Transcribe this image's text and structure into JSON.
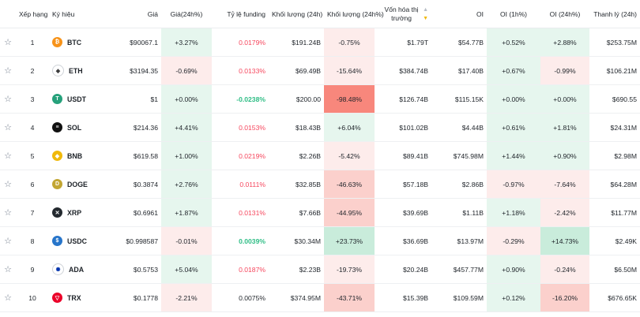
{
  "columns": {
    "rank": "Xếp hạng",
    "symbol": "Ký hiệu",
    "price": "Giá",
    "price_change": "Giá(24h%)",
    "funding": "Tỷ lệ funding",
    "volume": "Khối lượng (24h)",
    "volume_change": "Khối lượng (24h%)",
    "market_cap": "Vốn hóa thị trường",
    "oi": "OI",
    "oi_1h": "OI (1h%)",
    "oi_24h": "OI (24h%)",
    "liquidation": "Thanh lý (24h)"
  },
  "star_glyph": "☆",
  "sort_icon": "sort-updown-icon",
  "colors": {
    "green_bg_light": "#e6f6ee",
    "green_bg_mid": "#c9ecdb",
    "red_bg_light": "#fdeceb",
    "red_bg_mid": "#fbd0cc",
    "red_bg_strong": "#f8877c",
    "funding_red": "#f6465d",
    "funding_green": "#2ebd85"
  },
  "rows": [
    {
      "rank": "1",
      "symbol": "BTC",
      "icon": "bitcoin-icon",
      "icon_color": "#f7931a",
      "glyph": "₿",
      "price": "$90067.1",
      "price_change": "+3.27%",
      "pc_bg": "green_bg_light",
      "funding": "0.0179%",
      "funding_color": "funding_red",
      "volume": "$191.24B",
      "volume_change": "-0.75%",
      "vc_bg": "red_bg_light",
      "market_cap": "$1.79T",
      "oi": "$54.77B",
      "oi_1h": "+0.52%",
      "oi1_bg": "green_bg_light",
      "oi_24h": "+2.88%",
      "oi24_bg": "green_bg_light",
      "liquidation": "$253.75M"
    },
    {
      "rank": "2",
      "symbol": "ETH",
      "icon": "ethereum-icon",
      "icon_color": "#ffffff",
      "glyph": "◆",
      "price": "$3194.35",
      "price_change": "-0.69%",
      "pc_bg": "red_bg_light",
      "funding": "0.0133%",
      "funding_color": "funding_red",
      "volume": "$69.49B",
      "volume_change": "-15.64%",
      "vc_bg": "red_bg_light",
      "market_cap": "$384.74B",
      "oi": "$17.40B",
      "oi_1h": "+0.67%",
      "oi1_bg": "green_bg_light",
      "oi_24h": "-0.99%",
      "oi24_bg": "red_bg_light",
      "liquidation": "$106.21M"
    },
    {
      "rank": "3",
      "symbol": "USDT",
      "icon": "tether-icon",
      "icon_color": "#26a17b",
      "glyph": "T",
      "price": "$1",
      "price_change": "+0.00%",
      "pc_bg": "green_bg_light",
      "funding": "-0.0238%",
      "funding_color": "funding_green",
      "volume": "$200.00",
      "volume_change": "-98.48%",
      "vc_bg": "red_bg_strong",
      "market_cap": "$126.74B",
      "oi": "$115.15K",
      "oi_1h": "+0.00%",
      "oi1_bg": "green_bg_light",
      "oi_24h": "+0.00%",
      "oi24_bg": "green_bg_light",
      "liquidation": "$690.55"
    },
    {
      "rank": "4",
      "symbol": "SOL",
      "icon": "solana-icon",
      "icon_color": "#111111",
      "glyph": "≡",
      "price": "$214.36",
      "price_change": "+4.41%",
      "pc_bg": "green_bg_light",
      "funding": "0.0153%",
      "funding_color": "funding_red",
      "volume": "$18.43B",
      "volume_change": "+6.04%",
      "vc_bg": "green_bg_light",
      "market_cap": "$101.02B",
      "oi": "$4.44B",
      "oi_1h": "+0.61%",
      "oi1_bg": "green_bg_light",
      "oi_24h": "+1.81%",
      "oi24_bg": "green_bg_light",
      "liquidation": "$24.31M"
    },
    {
      "rank": "5",
      "symbol": "BNB",
      "icon": "bnb-icon",
      "icon_color": "#f0b90b",
      "glyph": "◆",
      "price": "$619.58",
      "price_change": "+1.00%",
      "pc_bg": "green_bg_light",
      "funding": "0.0219%",
      "funding_color": "funding_red",
      "volume": "$2.26B",
      "volume_change": "-5.42%",
      "vc_bg": "red_bg_light",
      "market_cap": "$89.41B",
      "oi": "$745.98M",
      "oi_1h": "+1.44%",
      "oi1_bg": "green_bg_light",
      "oi_24h": "+0.90%",
      "oi24_bg": "green_bg_light",
      "liquidation": "$2.98M"
    },
    {
      "rank": "6",
      "symbol": "DOGE",
      "icon": "dogecoin-icon",
      "icon_color": "#c2a633",
      "glyph": "D",
      "price": "$0.3874",
      "price_change": "+2.76%",
      "pc_bg": "green_bg_light",
      "funding": "0.0111%",
      "funding_color": "funding_red",
      "volume": "$32.85B",
      "volume_change": "-46.63%",
      "vc_bg": "red_bg_mid",
      "market_cap": "$57.18B",
      "oi": "$2.86B",
      "oi_1h": "-0.97%",
      "oi1_bg": "red_bg_light",
      "oi_24h": "-7.64%",
      "oi24_bg": "red_bg_light",
      "liquidation": "$64.28M"
    },
    {
      "rank": "7",
      "symbol": "XRP",
      "icon": "xrp-icon",
      "icon_color": "#23292f",
      "glyph": "✕",
      "price": "$0.6961",
      "price_change": "+1.87%",
      "pc_bg": "green_bg_light",
      "funding": "0.0131%",
      "funding_color": "funding_red",
      "volume": "$7.66B",
      "volume_change": "-44.95%",
      "vc_bg": "red_bg_mid",
      "market_cap": "$39.69B",
      "oi": "$1.11B",
      "oi_1h": "+1.18%",
      "oi1_bg": "green_bg_light",
      "oi_24h": "-2.42%",
      "oi24_bg": "red_bg_light",
      "liquidation": "$11.77M"
    },
    {
      "rank": "8",
      "symbol": "USDC",
      "icon": "usdc-icon",
      "icon_color": "#2775ca",
      "glyph": "$",
      "price": "$0.998587",
      "price_change": "-0.01%",
      "pc_bg": "red_bg_light",
      "funding": "0.0039%",
      "funding_color": "funding_green",
      "volume": "$30.34M",
      "volume_change": "+23.73%",
      "vc_bg": "green_bg_mid",
      "market_cap": "$36.69B",
      "oi": "$13.97M",
      "oi_1h": "-0.29%",
      "oi1_bg": "red_bg_light",
      "oi_24h": "+14.73%",
      "oi24_bg": "green_bg_mid",
      "liquidation": "$2.49K"
    },
    {
      "rank": "9",
      "symbol": "ADA",
      "icon": "cardano-icon",
      "icon_color": "#ffffff",
      "glyph": "✺",
      "price": "$0.5753",
      "price_change": "+5.04%",
      "pc_bg": "green_bg_light",
      "funding": "0.0187%",
      "funding_color": "funding_red",
      "volume": "$2.23B",
      "volume_change": "-19.73%",
      "vc_bg": "red_bg_light",
      "market_cap": "$20.24B",
      "oi": "$457.77M",
      "oi_1h": "+0.90%",
      "oi1_bg": "green_bg_light",
      "oi_24h": "-0.24%",
      "oi24_bg": "red_bg_light",
      "liquidation": "$6.50M"
    },
    {
      "rank": "10",
      "symbol": "TRX",
      "icon": "tron-icon",
      "icon_color": "#eb0029",
      "glyph": "▽",
      "price": "$0.1778",
      "price_change": "-2.21%",
      "pc_bg": "red_bg_light",
      "funding": "0.0075%",
      "funding_color": "neutral",
      "volume": "$374.95M",
      "volume_change": "-43.71%",
      "vc_bg": "red_bg_mid",
      "market_cap": "$15.39B",
      "oi": "$109.59M",
      "oi_1h": "+0.12%",
      "oi1_bg": "green_bg_light",
      "oi_24h": "-16.20%",
      "oi24_bg": "red_bg_mid",
      "liquidation": "$676.65K"
    }
  ]
}
